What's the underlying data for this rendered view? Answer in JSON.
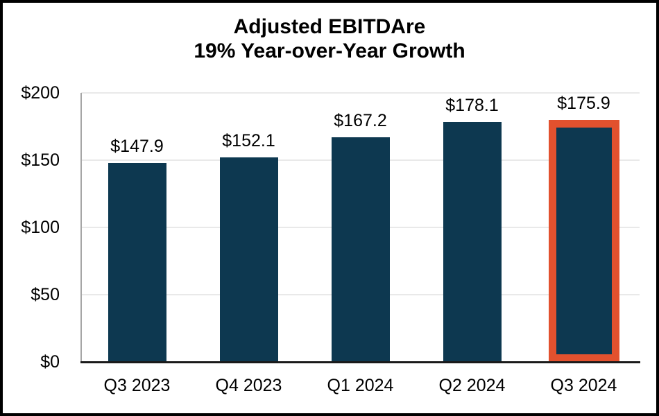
{
  "chart_data": {
    "type": "bar",
    "title": "Adjusted EBITDAre",
    "subtitle": "19% Year-over-Year Growth",
    "categories": [
      "Q3 2023",
      "Q4 2023",
      "Q1 2024",
      "Q2 2024",
      "Q3 2024"
    ],
    "values": [
      147.9,
      152.1,
      167.2,
      178.1,
      175.9
    ],
    "value_labels": [
      "$147.9",
      "$152.1",
      "$167.2",
      "$178.1",
      "$175.9"
    ],
    "y_axis": {
      "min": 0,
      "max": 200,
      "ticks": [
        {
          "label": "$200",
          "value": 200
        },
        {
          "label": "$150",
          "value": 150
        },
        {
          "label": "$100",
          "value": 100
        },
        {
          "label": "$50",
          "value": 50
        },
        {
          "label": "$0",
          "value": 0
        }
      ]
    },
    "highlight": {
      "index": 4
    },
    "grid": true,
    "legend": "none",
    "colors": {
      "bar": "#0D3850",
      "highlight_outline": "#E2512E",
      "gridline": "#E9E9E9",
      "y_axis_line": "#A6A6A6",
      "baseline": "#1A1A1A",
      "text": "#000000",
      "frame_border": "#000000",
      "background": "#FFFFFF"
    }
  }
}
